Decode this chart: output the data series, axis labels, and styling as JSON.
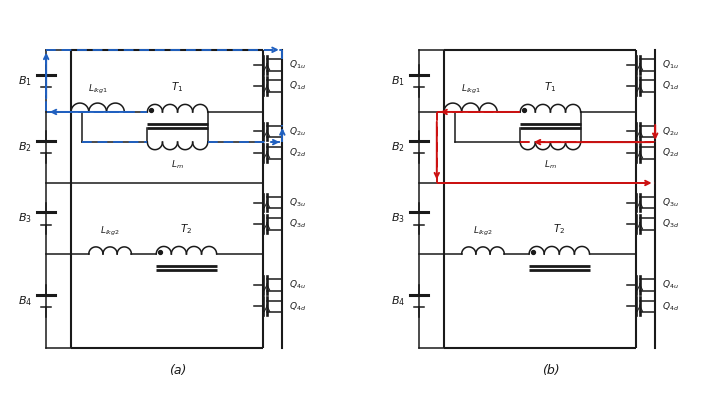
{
  "fig_width": 7.28,
  "fig_height": 4.05,
  "dpi": 100,
  "background": "#ffffff",
  "circuit_color": "#1a1a1a",
  "blue_color": "#2060c0",
  "red_color": "#cc1111",
  "label_a": "(a)",
  "label_b": "(b)"
}
